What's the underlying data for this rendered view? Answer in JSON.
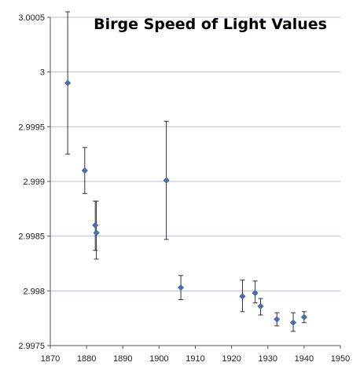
{
  "chart_data": {
    "type": "scatter",
    "title": "Birge Speed of Light Values",
    "xlabel": "",
    "ylabel": "",
    "xlim": [
      1870,
      1950
    ],
    "ylim": [
      2.9975,
      3.0005
    ],
    "xticks": [
      "1870",
      "1880",
      "1890",
      "1900",
      "1910",
      "1920",
      "1930",
      "1940",
      "1950"
    ],
    "yticks": [
      "2.9975",
      "2.998",
      "2.9985",
      "2.999",
      "2.9995",
      "3",
      "3.0005"
    ],
    "grid": "horizontal",
    "legend": "none",
    "marker": "diamond",
    "marker_color": "#4a6fb3",
    "points": [
      {
        "x": 1874.8,
        "y": 2.9999,
        "err_low": 2.99925,
        "err_high": 3.00055
      },
      {
        "x": 1879.5,
        "y": 2.9991,
        "err_low": 2.99889,
        "err_high": 2.99931
      },
      {
        "x": 1882.4,
        "y": 2.9986,
        "err_low": 2.99837,
        "err_high": 2.99882
      },
      {
        "x": 1882.7,
        "y": 2.99853,
        "err_low": 2.99829,
        "err_high": 2.99882
      },
      {
        "x": 1902.0,
        "y": 2.99901,
        "err_low": 2.99847,
        "err_high": 2.99955
      },
      {
        "x": 1906.0,
        "y": 2.99803,
        "err_low": 2.99792,
        "err_high": 2.99814
      },
      {
        "x": 1923.0,
        "y": 2.99795,
        "err_low": 2.99781,
        "err_high": 2.9981
      },
      {
        "x": 1926.5,
        "y": 2.99798,
        "err_low": 2.99789,
        "err_high": 2.99809
      },
      {
        "x": 1928.0,
        "y": 2.99786,
        "err_low": 2.99778,
        "err_high": 2.99793
      },
      {
        "x": 1932.5,
        "y": 2.99774,
        "err_low": 2.99768,
        "err_high": 2.9978
      },
      {
        "x": 1937.0,
        "y": 2.99771,
        "err_low": 2.99763,
        "err_high": 2.9978
      },
      {
        "x": 1940.0,
        "y": 2.99776,
        "err_low": 2.99771,
        "err_high": 2.99781
      }
    ]
  }
}
